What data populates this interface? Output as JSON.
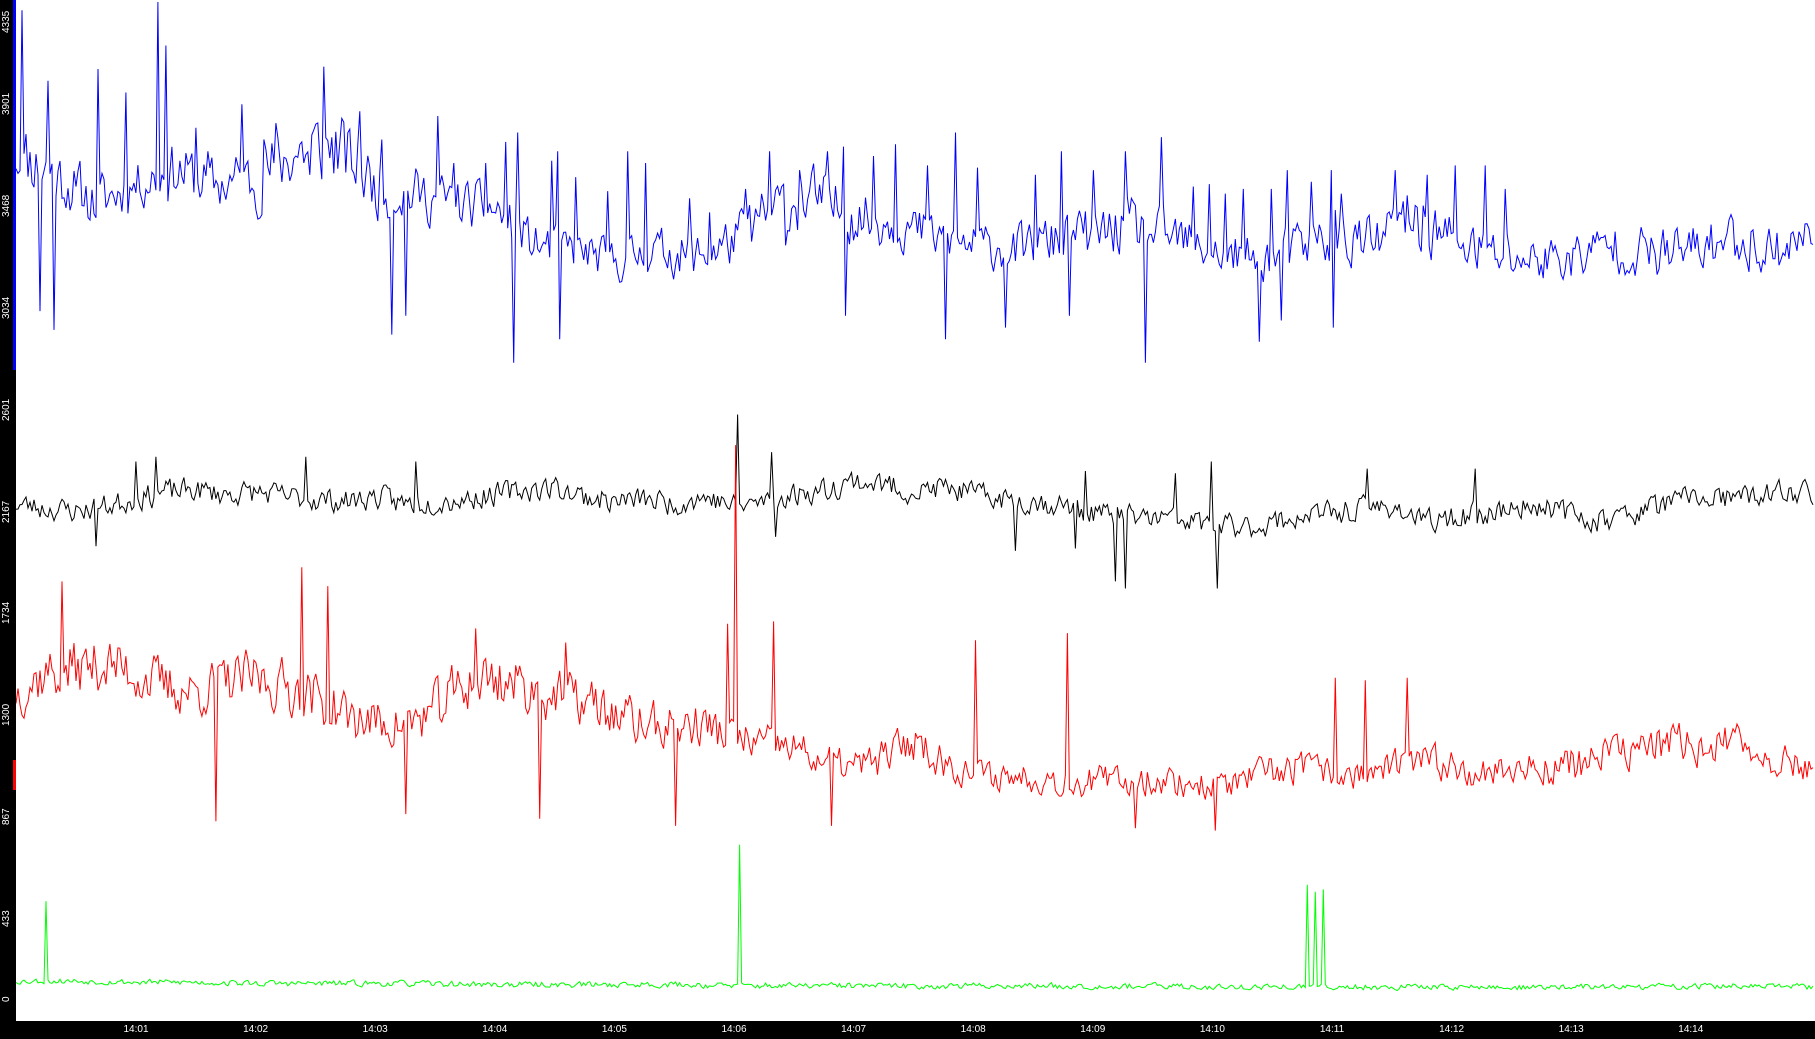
{
  "chart_data": {
    "type": "line",
    "title": "",
    "xlabel": "",
    "ylabel": "",
    "ylim": [
      0,
      4335
    ],
    "xlim_minutes": [
      0,
      1025
    ],
    "y_ticks": [
      {
        "value": 0,
        "label": "0"
      },
      {
        "value": 433,
        "label": "433"
      },
      {
        "value": 867,
        "label": "867"
      },
      {
        "value": 1300,
        "label": "1300"
      },
      {
        "value": 1734,
        "label": "1734"
      },
      {
        "value": 2167,
        "label": "2167"
      },
      {
        "value": 2601,
        "label": "2601"
      },
      {
        "value": 3034,
        "label": "3034"
      },
      {
        "value": 3468,
        "label": "3468"
      },
      {
        "value": 3901,
        "label": "3901"
      },
      {
        "value": 4335,
        "label": "4335"
      }
    ],
    "x_ticks": [
      {
        "label": "14:01"
      },
      {
        "label": "14:02"
      },
      {
        "label": "14:03"
      },
      {
        "label": "14:04"
      },
      {
        "label": "14:05"
      },
      {
        "label": "14:06"
      },
      {
        "label": "14:07"
      },
      {
        "label": "14:08"
      },
      {
        "label": "14:09"
      },
      {
        "label": "14:10"
      },
      {
        "label": "14:11"
      },
      {
        "label": "14:12"
      },
      {
        "label": "14:13"
      },
      {
        "label": "14:14"
      }
    ],
    "x_tick_start_time": "14:00",
    "grid": false,
    "legend": "none",
    "series": [
      {
        "color": "#0000ff",
        "baseline": [
          3700,
          3600,
          3480,
          3560,
          3620,
          3560,
          3580,
          3700,
          3720,
          3550,
          3520,
          3480,
          3450,
          3300,
          3280,
          3230,
          3280,
          3250,
          3320,
          3460,
          3500,
          3420,
          3400,
          3330,
          3300,
          3280,
          3320,
          3350,
          3380,
          3330,
          3270,
          3240,
          3280,
          3350,
          3300,
          3420,
          3320,
          3260,
          3240,
          3250,
          3300,
          3260,
          3280,
          3330,
          3280,
          3340
        ],
        "amplitude": [
          220,
          180,
          160,
          140,
          170,
          160,
          200,
          210,
          230,
          180,
          160,
          150,
          140,
          130,
          120,
          120,
          130,
          140,
          150,
          170,
          190,
          160,
          150,
          140,
          130,
          130,
          150,
          160,
          160,
          150,
          140,
          140,
          140,
          170,
          160,
          200,
          160,
          150,
          140,
          140,
          150,
          150,
          150,
          160,
          150,
          150
        ],
        "peaks": [
          [
            3.0,
            4300
          ],
          [
            16,
            4000
          ],
          [
            30,
            3550
          ],
          [
            41,
            4050
          ],
          [
            55,
            3950
          ],
          [
            71,
            4335
          ],
          [
            75,
            4150
          ],
          [
            90,
            3800
          ],
          [
            96,
            3700
          ],
          [
            113,
            3900
          ],
          [
            124,
            3750
          ],
          [
            130,
            3820
          ],
          [
            140,
            3680
          ],
          [
            147,
            3600
          ],
          [
            154,
            4060
          ],
          [
            172,
            3870
          ],
          [
            183,
            3750
          ],
          [
            211,
            3850
          ],
          [
            219,
            3650
          ],
          [
            235,
            3650
          ],
          [
            245,
            3740
          ],
          [
            251,
            3780
          ],
          [
            268,
            3660
          ],
          [
            271,
            3700
          ],
          [
            280,
            3590
          ],
          [
            296,
            3530
          ],
          [
            306,
            3700
          ],
          [
            315,
            3650
          ],
          [
            337,
            3500
          ],
          [
            347,
            3440
          ],
          [
            365,
            3540
          ],
          [
            377,
            3700
          ],
          [
            392,
            3620
          ],
          [
            406,
            3700
          ],
          [
            414,
            3720
          ],
          [
            429,
            3680
          ],
          [
            440,
            3730
          ],
          [
            456,
            3640
          ],
          [
            470,
            3780
          ],
          [
            481,
            3630
          ],
          [
            510,
            3600
          ],
          [
            523,
            3700
          ],
          [
            539,
            3620
          ],
          [
            555,
            3700
          ],
          [
            573,
            3760
          ],
          [
            589,
            3550
          ],
          [
            597,
            3560
          ],
          [
            605,
            3520
          ],
          [
            614,
            3540
          ],
          [
            628,
            3540
          ],
          [
            636,
            3620
          ],
          [
            648,
            3570
          ],
          [
            658,
            3620
          ],
          [
            663,
            3520
          ],
          [
            690,
            3620
          ],
          [
            706,
            3600
          ],
          [
            720,
            3640
          ],
          [
            735,
            3640
          ],
          [
            745,
            3540
          ]
        ],
        "dips": [
          [
            12,
            3020
          ],
          [
            19,
            2940
          ],
          [
            188,
            2920
          ],
          [
            195,
            3000
          ],
          [
            249,
            2800
          ],
          [
            272,
            2900
          ],
          [
            385,
            3300
          ],
          [
            415,
            3000
          ],
          [
            465,
            2900
          ],
          [
            495,
            2950
          ],
          [
            527,
            3000
          ],
          [
            565,
            2800
          ],
          [
            622,
            2890
          ],
          [
            633,
            2980
          ],
          [
            659,
            2950
          ]
        ],
        "noise_seed": 11
      },
      {
        "color": "#000000",
        "baseline": [
          2200,
          2180,
          2170,
          2190,
          2220,
          2250,
          2260,
          2240,
          2250,
          2230,
          2220,
          2210,
          2230,
          2200,
          2210,
          2220,
          2240,
          2260,
          2270,
          2230,
          2210,
          2220,
          2200,
          2230,
          2190,
          2210,
          2240,
          2260,
          2300,
          2280,
          2250,
          2270,
          2240,
          2220,
          2210,
          2190,
          2160,
          2150,
          2140,
          2130,
          2110,
          2100,
          2120,
          2150,
          2160,
          2180,
          2190,
          2120,
          2140,
          2160,
          2180,
          2200,
          2150,
          2130,
          2160,
          2200,
          2230,
          2220,
          2230,
          2250,
          2250
        ],
        "amplitude": [
          70,
          70,
          70,
          70,
          70,
          75,
          70,
          70,
          70,
          70,
          70,
          70,
          70,
          75,
          70,
          70,
          70,
          70,
          70,
          70,
          70,
          70,
          70,
          70,
          70,
          70,
          70,
          70,
          75,
          75,
          70,
          70,
          70,
          70,
          70,
          70,
          70,
          70,
          70,
          70,
          70,
          70,
          70,
          70,
          70,
          70,
          70,
          70,
          70,
          70,
          70,
          70,
          70,
          70,
          70,
          70,
          70,
          70,
          70,
          70,
          70
        ],
        "peaks": [
          [
            60,
            2380
          ],
          [
            70,
            2400
          ],
          [
            145,
            2400
          ],
          [
            200,
            2380
          ],
          [
            361,
            2580
          ],
          [
            378,
            2420
          ],
          [
            535,
            2340
          ],
          [
            580,
            2330
          ],
          [
            598,
            2380
          ],
          [
            676,
            2350
          ],
          [
            730,
            2350
          ]
        ],
        "dips": [
          [
            40,
            2020
          ],
          [
            380,
            2060
          ],
          [
            500,
            2000
          ],
          [
            530,
            2010
          ],
          [
            550,
            1870
          ],
          [
            555,
            1840
          ],
          [
            601,
            1840
          ]
        ],
        "noise_seed": 23
      },
      {
        "color": "#ff0000",
        "baseline": [
          1400,
          1480,
          1500,
          1520,
          1480,
          1420,
          1400,
          1440,
          1460,
          1420,
          1380,
          1300,
          1270,
          1260,
          1320,
          1440,
          1460,
          1420,
          1380,
          1360,
          1300,
          1260,
          1250,
          1260,
          1200,
          1180,
          1160,
          1100,
          1080,
          1120,
          1200,
          1100,
          1050,
          1040,
          1040,
          1020,
          1020,
          1020,
          1030,
          1010,
          1000,
          1020,
          1060,
          1080,
          1050,
          1050,
          1080,
          1100,
          1090,
          1060,
          1070,
          1080,
          1090,
          1130,
          1150,
          1180,
          1170,
          1180,
          1160,
          1100,
          1080
        ],
        "amplitude": [
          150,
          170,
          170,
          160,
          160,
          160,
          150,
          150,
          160,
          160,
          160,
          150,
          140,
          140,
          160,
          180,
          180,
          160,
          150,
          150,
          150,
          140,
          130,
          130,
          120,
          110,
          110,
          100,
          100,
          110,
          130,
          100,
          90,
          90,
          90,
          90,
          90,
          90,
          90,
          90,
          90,
          90,
          100,
          100,
          90,
          90,
          100,
          100,
          100,
          100,
          100,
          110,
          110,
          110,
          120,
          120,
          120,
          120,
          110,
          100,
          100
        ],
        "peaks": [
          [
            23,
            1870
          ],
          [
            143,
            1930
          ],
          [
            156,
            1850
          ],
          [
            230,
            1670
          ],
          [
            275,
            1610
          ],
          [
            356,
            1690
          ],
          [
            360,
            2450
          ],
          [
            379,
            1700
          ],
          [
            480,
            1620
          ],
          [
            526,
            1650
          ],
          [
            600,
            1500
          ],
          [
            660,
            1460
          ],
          [
            675,
            1450
          ],
          [
            696,
            1460
          ]
        ],
        "dips": [
          [
            100,
            850
          ],
          [
            195,
            880
          ],
          [
            262,
            860
          ],
          [
            330,
            830
          ],
          [
            408,
            830
          ],
          [
            560,
            820
          ],
          [
            600,
            810
          ]
        ],
        "noise_seed": 37
      },
      {
        "color": "#00ff00",
        "baseline": [
          170,
          170,
          165,
          165,
          160,
          160,
          160,
          158,
          155,
          155,
          155,
          155,
          150,
          150,
          150,
          148,
          150,
          150,
          148,
          148,
          145,
          145,
          145,
          145,
          145,
          142,
          145,
          145,
          148,
          148,
          145
        ],
        "amplitude": [
          18,
          18,
          18,
          18,
          18,
          18,
          18,
          18,
          18,
          18,
          18,
          18,
          18,
          18,
          18,
          18,
          18,
          18,
          18,
          18,
          18,
          18,
          18,
          18,
          18,
          18,
          18,
          18,
          18,
          18,
          18
        ],
        "peaks": [
          [
            15,
            510
          ],
          [
            362,
            750
          ],
          [
            646,
            580
          ],
          [
            650,
            550
          ],
          [
            654,
            560
          ]
        ],
        "dips": [],
        "noise_seed": 53
      }
    ]
  }
}
